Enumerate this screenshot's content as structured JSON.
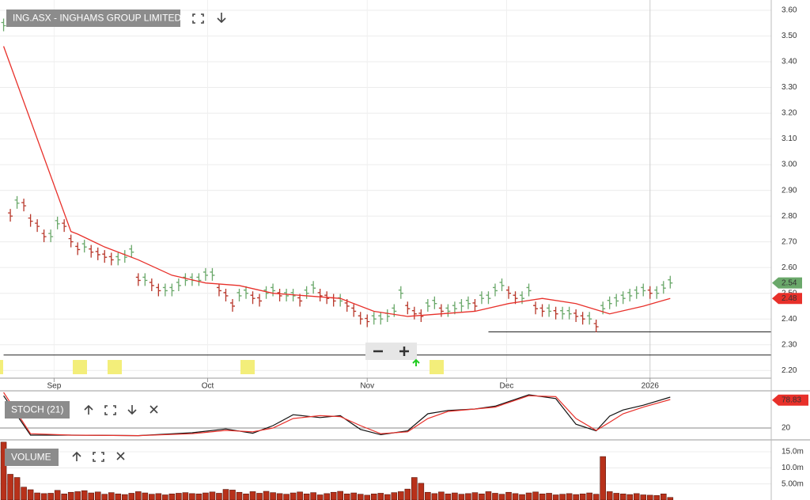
{
  "chart_data": [
    {
      "type": "ohlc",
      "title": "ING.ASX - INGHAMS GROUP LIMITED",
      "values": [
        3.54,
        2.8,
        2.85,
        2.84,
        2.78,
        2.76,
        2.72,
        2.72,
        2.77,
        2.76,
        2.7,
        2.67,
        2.68,
        2.66,
        2.65,
        2.64,
        2.63,
        2.63,
        2.64,
        2.66,
        2.55,
        2.55,
        2.53,
        2.51,
        2.51,
        2.51,
        2.53,
        2.55,
        2.55,
        2.55,
        2.57,
        2.57,
        2.51,
        2.49,
        2.45,
        2.49,
        2.5,
        2.48,
        2.47,
        2.5,
        2.51,
        2.49,
        2.49,
        2.49,
        2.47,
        2.5,
        2.52,
        2.49,
        2.48,
        2.47,
        2.47,
        2.45,
        2.43,
        2.4,
        2.39,
        2.4,
        2.4,
        2.41,
        2.43,
        2.5,
        2.44,
        2.42,
        2.41,
        2.45,
        2.46,
        2.43,
        2.43,
        2.44,
        2.45,
        2.46,
        2.45,
        2.48,
        2.48,
        2.51,
        2.53,
        2.5,
        2.48,
        2.48,
        2.51,
        2.44,
        2.43,
        2.43,
        2.42,
        2.42,
        2.42,
        2.41,
        2.4,
        2.4,
        2.37,
        2.44,
        2.46,
        2.47,
        2.48,
        2.49,
        2.5,
        2.51,
        2.5,
        2.5,
        2.52,
        2.54
      ],
      "up_color": "#6aa86a",
      "down_color": "#b8372a",
      "moving_average": {
        "x": [
          0,
          10,
          11,
          15,
          20,
          25,
          30,
          35,
          40,
          45,
          50,
          55,
          60,
          65,
          70,
          75,
          80,
          85,
          90,
          95,
          99
        ],
        "values": [
          3.46,
          2.74,
          2.73,
          2.68,
          2.63,
          2.57,
          2.54,
          2.53,
          2.5,
          2.49,
          2.48,
          2.43,
          2.41,
          2.42,
          2.43,
          2.46,
          2.48,
          2.46,
          2.42,
          2.45,
          2.48
        ],
        "color": "#e8302a"
      },
      "hlines": [
        {
          "value": 2.35,
          "from": 72
        },
        {
          "value": 2.26,
          "from": 0
        }
      ],
      "price_labels": [
        {
          "value": 2.54,
          "color": "#6aa86a"
        },
        {
          "value": 2.48,
          "color": "#e8302a"
        }
      ],
      "xlim": [
        -0.3,
        114
      ],
      "xticks": [
        {
          "value": 7.5,
          "label": "Sep"
        },
        {
          "value": 30.3,
          "label": "Oct"
        },
        {
          "value": 54,
          "label": "Nov"
        },
        {
          "value": 74.7,
          "label": "Dec"
        },
        {
          "value": 96,
          "label": "2026"
        }
      ],
      "ylim": [
        2.17,
        3.64
      ],
      "yticks": [
        {
          "value": 2.2,
          "label": "2.20"
        },
        {
          "value": 2.3,
          "label": "2.30"
        },
        {
          "value": 2.4,
          "label": "2.40"
        },
        {
          "value": 2.5,
          "label": "2.50"
        },
        {
          "value": 2.6,
          "label": "2.60"
        },
        {
          "value": 2.7,
          "label": "2.70"
        },
        {
          "value": 2.8,
          "label": "2.80"
        },
        {
          "value": 2.9,
          "label": "2.90"
        },
        {
          "value": 3.0,
          "label": "3.00"
        },
        {
          "value": 3.1,
          "label": "3.10"
        },
        {
          "value": 3.2,
          "label": "3.20"
        },
        {
          "value": 3.3,
          "label": "3.30"
        },
        {
          "value": 3.4,
          "label": "3.40"
        },
        {
          "value": 3.5,
          "label": "3.50"
        },
        {
          "value": 3.6,
          "label": "3.60"
        }
      ]
    },
    {
      "type": "line",
      "title": "STOCH (21)",
      "last_value": 78.83,
      "x": [
        0,
        4,
        10,
        20,
        28,
        33,
        37,
        40,
        43,
        47,
        50,
        53,
        56,
        60,
        63,
        66,
        70,
        73,
        78,
        82,
        85,
        88,
        90,
        92,
        95,
        99
      ],
      "series": [
        {
          "color": "#111111",
          "values": [
            88,
            5,
            5,
            4,
            10,
            18,
            9,
            25,
            48,
            42,
            46,
            17,
            6,
            14,
            50,
            57,
            60,
            66,
            90,
            82,
            28,
            14,
            45,
            58,
            68,
            85
          ]
        },
        {
          "color": "#e8302a",
          "values": [
            95,
            8,
            5,
            4,
            8,
            15,
            12,
            20,
            40,
            46,
            44,
            25,
            8,
            12,
            40,
            55,
            60,
            64,
            88,
            86,
            40,
            15,
            32,
            50,
            64,
            80
          ]
        }
      ],
      "xlim": [
        -0.3,
        114
      ],
      "ylim": [
        0,
        100
      ],
      "yticks": [
        20
      ]
    },
    {
      "type": "bar",
      "title": "VOLUME",
      "color": "#b8311a",
      "values": [
        18000000,
        8000000,
        7000000,
        4000000,
        3200000,
        2200000,
        2000000,
        2100000,
        3000000,
        1900000,
        2400000,
        2600000,
        2900000,
        2200000,
        2500000,
        1800000,
        2300000,
        1900000,
        1700000,
        2100000,
        2600000,
        2200000,
        1800000,
        2000000,
        1600000,
        1900000,
        2100000,
        2300000,
        2000000,
        1900000,
        2200000,
        2500000,
        2100000,
        3300000,
        3100000,
        2400000,
        1900000,
        2600000,
        2100000,
        2700000,
        2300000,
        2000000,
        1800000,
        2200000,
        2500000,
        1900000,
        2300000,
        1600000,
        2000000,
        2400000,
        2700000,
        1900000,
        2200000,
        1800000,
        1500000,
        1900000,
        2100000,
        1700000,
        2300000,
        2600000,
        3400000,
        7000000,
        5200000,
        2400000,
        2000000,
        2500000,
        1900000,
        2200000,
        1800000,
        2000000,
        2300000,
        1900000,
        2600000,
        2100000,
        1800000,
        2400000,
        2000000,
        1700000,
        2200000,
        2500000,
        1900000,
        2100000,
        1600000,
        1800000,
        2000000,
        1700000,
        1900000,
        2200000,
        1800000,
        13500000,
        2600000,
        2100000,
        1900000,
        1700000,
        2000000,
        1600000,
        1500000,
        1400000,
        1900000,
        800000
      ],
      "xlim": [
        -0.3,
        114
      ],
      "ylim": [
        0,
        18200000
      ],
      "yticks": [
        {
          "value": 5000000,
          "label": "5.00m"
        },
        {
          "value": 10000000,
          "label": "10.0m"
        },
        {
          "value": 15000000,
          "label": "15.0m"
        }
      ]
    }
  ]
}
